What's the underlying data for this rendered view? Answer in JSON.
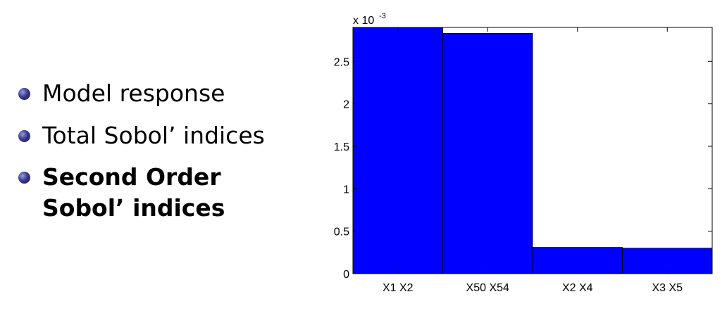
{
  "bullets": [
    {
      "text": "Model response",
      "bold": false
    },
    {
      "text": "Total Sobol’ indices",
      "bold": false
    },
    {
      "text": "Second Order Sobol’ indices",
      "bold": true
    }
  ],
  "chart_data": {
    "type": "bar",
    "categories": [
      "X1 X2",
      "X50 X54",
      "X2 X4",
      "X3 X5"
    ],
    "values": [
      0.0029,
      0.00283,
      0.00031,
      0.0003
    ],
    "ylim": [
      0,
      0.0029
    ],
    "yticks": [
      0,
      0.0005,
      0.001,
      0.0015,
      0.002,
      0.0025
    ],
    "ytick_labels": [
      "0",
      "0.5",
      "1",
      "1.5",
      "2",
      "2.5"
    ],
    "scale_label": "x 10",
    "scale_exponent": "-3",
    "bar_color": "#0000ff",
    "grid": false,
    "title": "",
    "xlabel": "",
    "ylabel": ""
  }
}
